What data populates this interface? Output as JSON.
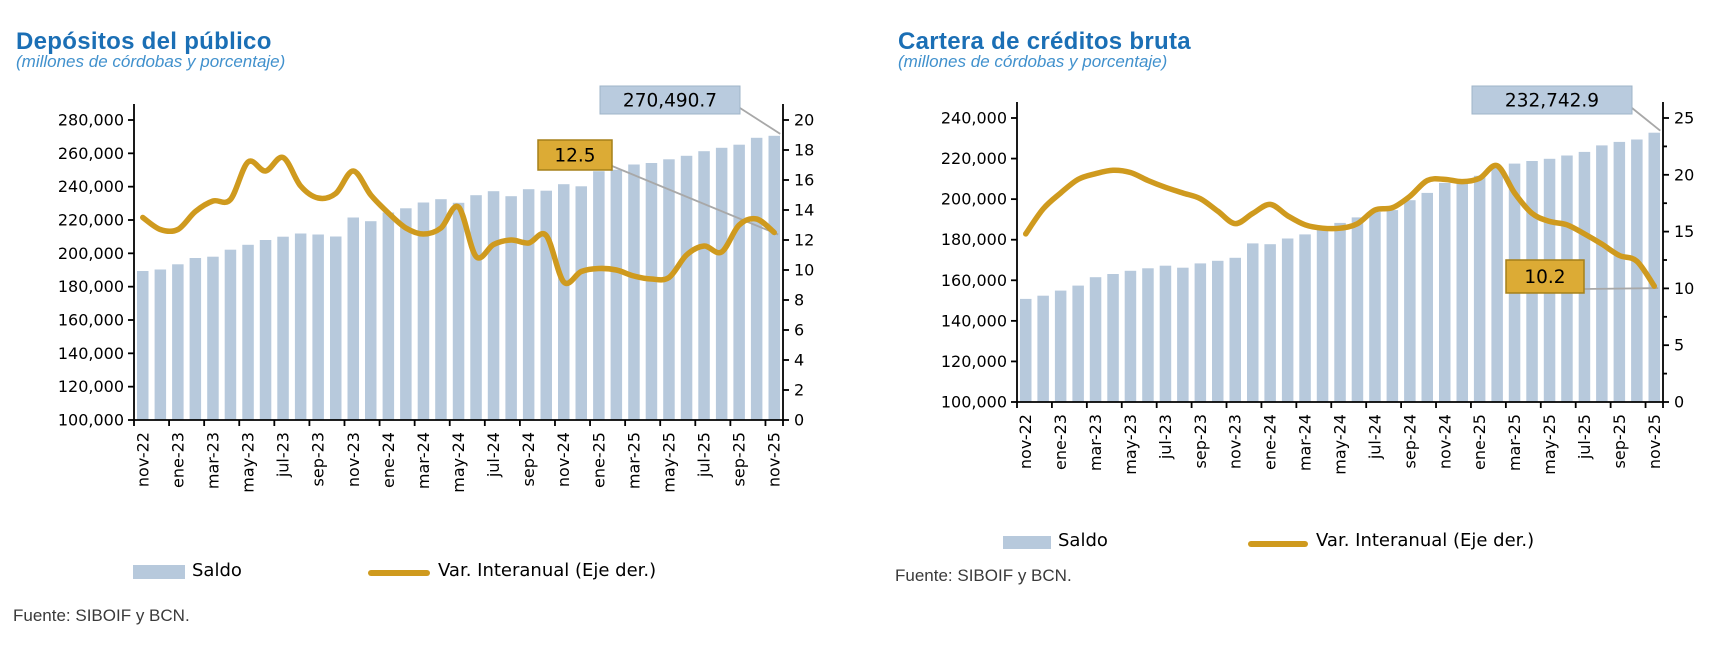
{
  "colors": {
    "bar_fill": "#b7c9dc",
    "line_stroke": "#cf9a1e",
    "title_blue": "#1b6fb5",
    "subtitle_blue": "#4191cd",
    "annotation_bar_fill": "#b9cbde",
    "annotation_bar_border": "#9fb4c8",
    "annotation_line_fill": "#dcab35",
    "annotation_line_border": "#a5801a",
    "leader_grey": "#a8a8a8",
    "axis_black": "#000000"
  },
  "chart_data": [
    {
      "id": "depositos-del-publico",
      "type": "bar+line",
      "title": "Depósitos del público",
      "subtitle": "(millones de córdobas y porcentaje)",
      "source": "Fuente: SIBOIF y BCN.",
      "legend": [
        "Saldo",
        "Var. Interanual (Eje der.)"
      ],
      "categories": [
        "nov-22",
        "dic-22",
        "ene-23",
        "feb-23",
        "mar-23",
        "abr-23",
        "may-23",
        "jun-23",
        "jul-23",
        "ago-23",
        "sep-23",
        "oct-23",
        "nov-23",
        "dic-23",
        "ene-24",
        "feb-24",
        "mar-24",
        "abr-24",
        "may-24",
        "jun-24",
        "jul-24",
        "ago-24",
        "sep-24",
        "oct-24",
        "nov-24",
        "dic-24",
        "ene-25",
        "feb-25",
        "mar-25",
        "abr-25",
        "may-25",
        "jun-25",
        "jul-25",
        "ago-25",
        "sep-25",
        "oct-25",
        "nov-25"
      ],
      "x_tick_labels": [
        "nov-22",
        "ene-23",
        "mar-23",
        "may-23",
        "jul-23",
        "sep-23",
        "nov-23",
        "ene-24",
        "mar-24",
        "may-24",
        "jul-24",
        "sep-24",
        "nov-24",
        "ene-25",
        "mar-25",
        "may-25",
        "jul-25",
        "sep-25",
        "nov-25"
      ],
      "left_axis": {
        "min": 100000,
        "max": 280000,
        "step": 20000
      },
      "right_axis": {
        "min": 0,
        "max": 20,
        "step": 2
      },
      "series": [
        {
          "name": "Saldo",
          "type": "bar",
          "axis": "left",
          "values": [
            189400,
            190300,
            193400,
            197200,
            198000,
            202200,
            205100,
            208000,
            210000,
            211900,
            211300,
            210100,
            221500,
            219300,
            224500,
            227000,
            230500,
            232500,
            230300,
            234900,
            237300,
            234300,
            238500,
            237600,
            241500,
            240200,
            249300,
            250200,
            253300,
            254200,
            256400,
            258500,
            261300,
            263300,
            265200,
            269300,
            270490.7
          ]
        },
        {
          "name": "Var. Interanual (Eje der.)",
          "type": "line",
          "axis": "right",
          "values": [
            13.5,
            12.7,
            12.7,
            13.9,
            14.6,
            14.7,
            17.2,
            16.6,
            17.5,
            15.6,
            14.8,
            15.1,
            16.6,
            15.0,
            13.8,
            12.8,
            12.4,
            12.8,
            14.2,
            10.9,
            11.7,
            12.0,
            11.8,
            12.3,
            9.2,
            9.9,
            10.1,
            10.0,
            9.6,
            9.4,
            9.5,
            11.0,
            11.6,
            11.2,
            13.0,
            13.4,
            12.5
          ]
        }
      ],
      "annotations": [
        {
          "label": "270,490.7",
          "series": "Saldo",
          "point": "nov-25"
        },
        {
          "label": "12.5",
          "series": "Var. Interanual (Eje der.)",
          "point": "nov-25"
        }
      ]
    },
    {
      "id": "cartera-de-creditos-bruta",
      "type": "bar+line",
      "title": "Cartera de créditos bruta",
      "subtitle": "(millones de córdobas y porcentaje)",
      "source": "Fuente: SIBOIF y BCN.",
      "legend": [
        "Saldo",
        "Var. Interanual (Eje der.)"
      ],
      "categories": [
        "nov-22",
        "dic-22",
        "ene-23",
        "feb-23",
        "mar-23",
        "abr-23",
        "may-23",
        "jun-23",
        "jul-23",
        "ago-23",
        "sep-23",
        "oct-23",
        "nov-23",
        "dic-23",
        "ene-24",
        "feb-24",
        "mar-24",
        "abr-24",
        "may-24",
        "jun-24",
        "jul-24",
        "ago-24",
        "sep-24",
        "oct-24",
        "nov-24",
        "dic-24",
        "ene-25",
        "feb-25",
        "mar-25",
        "abr-25",
        "may-25",
        "jun-25",
        "jul-25",
        "ago-25",
        "sep-25",
        "oct-25",
        "nov-25"
      ],
      "x_tick_labels": [
        "nov-22",
        "ene-23",
        "mar-23",
        "may-23",
        "jul-23",
        "sep-23",
        "nov-23",
        "ene-24",
        "mar-24",
        "may-24",
        "jul-24",
        "sep-24",
        "nov-24",
        "ene-25",
        "mar-25",
        "may-25",
        "jul-25",
        "sep-25",
        "nov-25"
      ],
      "left_axis": {
        "min": 100000,
        "max": 240000,
        "step": 20000
      },
      "right_axis": {
        "min": 0,
        "max": 25,
        "step": 5,
        "minor_step": 2.5
      },
      "series": [
        {
          "name": "Saldo",
          "type": "bar",
          "axis": "left",
          "values": [
            150800,
            152400,
            154900,
            157400,
            161500,
            163100,
            164700,
            165900,
            167200,
            166200,
            168300,
            169600,
            171100,
            178200,
            177800,
            180600,
            182600,
            185500,
            188300,
            191000,
            193700,
            194600,
            199500,
            203100,
            208000,
            209500,
            211500,
            215500,
            217500,
            218800,
            219900,
            221500,
            223300,
            226500,
            228200,
            229400,
            232742.9
          ]
        },
        {
          "name": "Var. Interanual (Eje der.)",
          "type": "line",
          "axis": "right",
          "values": [
            14.8,
            17.0,
            18.4,
            19.6,
            20.1,
            20.4,
            20.2,
            19.5,
            18.9,
            18.4,
            17.9,
            16.8,
            15.7,
            16.6,
            17.4,
            16.4,
            15.6,
            15.3,
            15.3,
            15.7,
            16.9,
            17.1,
            18.1,
            19.5,
            19.6,
            19.4,
            19.7,
            20.8,
            18.4,
            16.6,
            15.9,
            15.6,
            14.8,
            13.9,
            12.9,
            12.4,
            10.2
          ]
        }
      ],
      "annotations": [
        {
          "label": "232,742.9",
          "series": "Saldo",
          "point": "nov-25"
        },
        {
          "label": "10.2",
          "series": "Var. Interanual (Eje der.)",
          "point": "nov-25"
        }
      ]
    }
  ]
}
